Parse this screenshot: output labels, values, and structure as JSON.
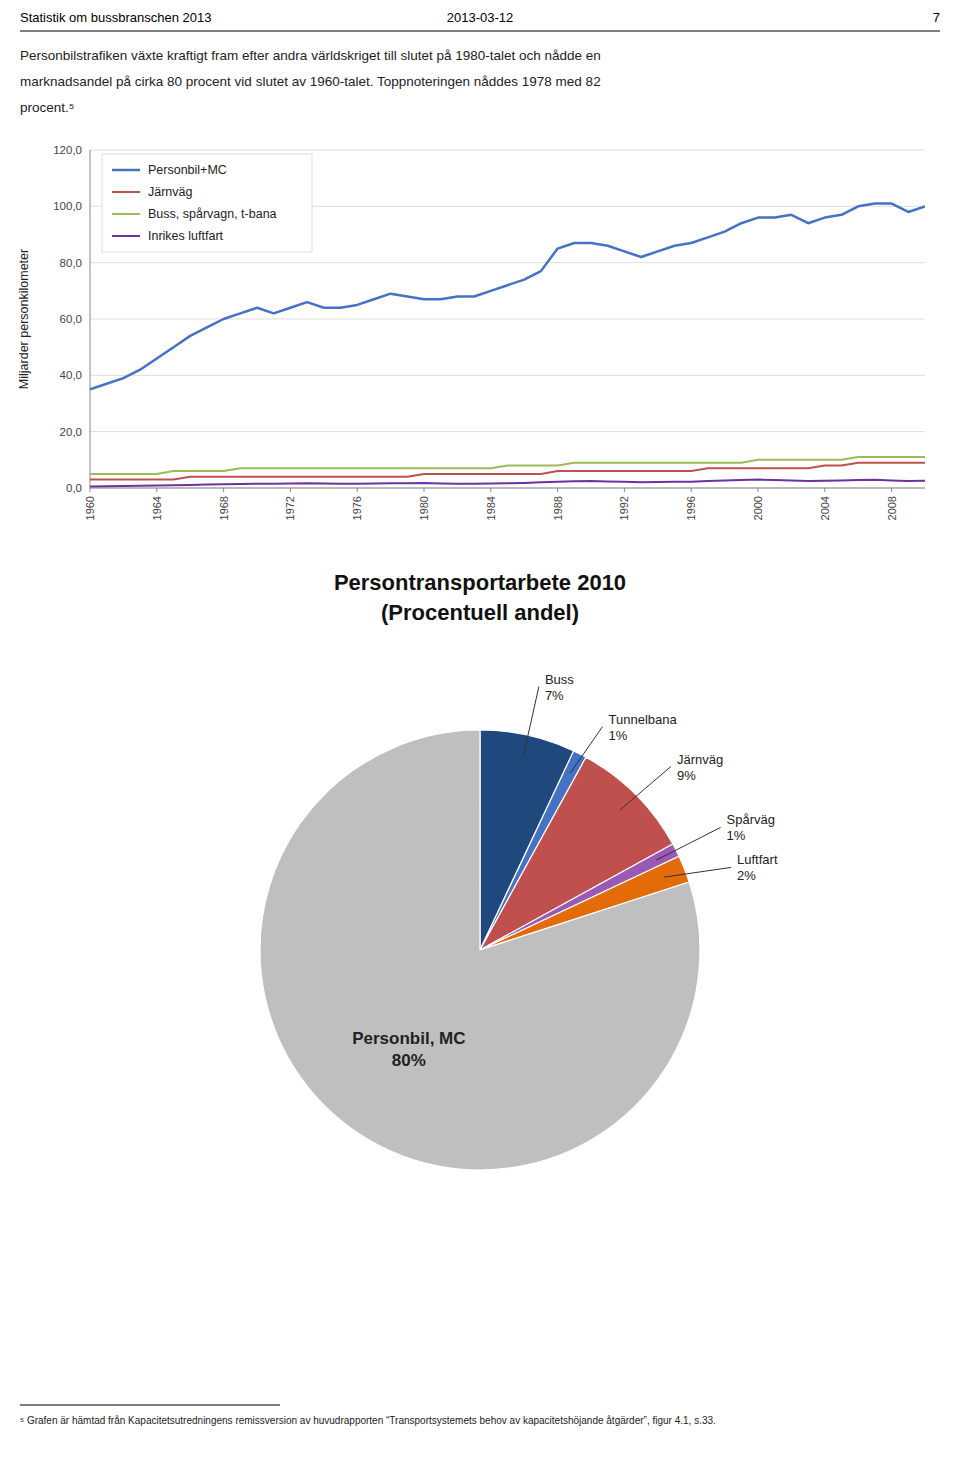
{
  "page_header_left": "Statistik om bussbranschen 2013",
  "page_header_center": "2013-03-12",
  "page_header_right": "7",
  "body_text": [
    "Personbilstrafiken växte kraftigt fram efter andra världskriget till slutet på 1980-talet och nådde en",
    "marknadsandel på cirka 80 procent vid slutet av 1960-talet. Toppnoteringen nåddes 1978 med 82",
    "procent.⁵"
  ],
  "footnote": "⁵ Grafen är hämtad från Kapacitetsutredningens remissversion av huvudrapporten “Transportsystemets behov av kapacitetshöjande åtgärder”, figur 4.1, s.33.",
  "chart_data": [
    {
      "type": "line",
      "x": [
        1960,
        1961,
        1962,
        1963,
        1964,
        1965,
        1966,
        1967,
        1968,
        1969,
        1970,
        1971,
        1972,
        1973,
        1974,
        1975,
        1976,
        1977,
        1978,
        1979,
        1980,
        1981,
        1982,
        1983,
        1984,
        1985,
        1986,
        1987,
        1988,
        1989,
        1990,
        1991,
        1992,
        1993,
        1994,
        1995,
        1996,
        1997,
        1998,
        1999,
        2000,
        2001,
        2002,
        2003,
        2004,
        2005,
        2006,
        2007,
        2008,
        2009,
        2010
      ],
      "series": [
        {
          "name": "Personbil+MC",
          "color": "#4472C4",
          "values": [
            35,
            37,
            39,
            42,
            46,
            50,
            54,
            57,
            60,
            62,
            64,
            62,
            64,
            66,
            64,
            64,
            65,
            67,
            69,
            68,
            67,
            67,
            68,
            68,
            70,
            72,
            74,
            77,
            85,
            87,
            87,
            86,
            84,
            82,
            84,
            86,
            87,
            89,
            91,
            94,
            96,
            96,
            97,
            94,
            96,
            97,
            100,
            101,
            101,
            98,
            100
          ]
        },
        {
          "name": "Järnväg",
          "color": "#C0504D",
          "values": [
            3,
            3,
            3,
            3,
            3,
            3,
            4,
            4,
            4,
            4,
            4,
            4,
            4,
            4,
            4,
            4,
            4,
            4,
            4,
            4,
            5,
            5,
            5,
            5,
            5,
            5,
            5,
            5,
            6,
            6,
            6,
            6,
            6,
            6,
            6,
            6,
            6,
            7,
            7,
            7,
            7,
            7,
            7,
            7,
            8,
            8,
            9,
            9,
            9,
            9,
            9
          ]
        },
        {
          "name": "Buss, spårvagn, t-bana",
          "color": "#9BBB59",
          "values": [
            5,
            5,
            5,
            5,
            5,
            6,
            6,
            6,
            6,
            7,
            7,
            7,
            7,
            7,
            7,
            7,
            7,
            7,
            7,
            7,
            7,
            7,
            7,
            7,
            7,
            8,
            8,
            8,
            8,
            9,
            9,
            9,
            9,
            9,
            9,
            9,
            9,
            9,
            9,
            9,
            10,
            10,
            10,
            10,
            10,
            10,
            11,
            11,
            11,
            11,
            11
          ]
        },
        {
          "name": "Inrikes luftfart",
          "color": "#7030A0",
          "values": [
            0.5,
            0.6,
            0.7,
            0.8,
            0.9,
            1.0,
            1.1,
            1.2,
            1.3,
            1.4,
            1.5,
            1.5,
            1.6,
            1.7,
            1.6,
            1.5,
            1.5,
            1.6,
            1.7,
            1.7,
            1.8,
            1.6,
            1.5,
            1.5,
            1.6,
            1.7,
            1.8,
            2.0,
            2.2,
            2.4,
            2.5,
            2.3,
            2.2,
            2.0,
            2.1,
            2.2,
            2.2,
            2.5,
            2.7,
            2.8,
            3.0,
            2.8,
            2.7,
            2.5,
            2.6,
            2.7,
            2.8,
            2.9,
            2.7,
            2.5,
            2.6
          ]
        }
      ],
      "y_label": "Miljarder personkilometer",
      "xlim": [
        1960,
        2010
      ],
      "xticks": [
        1960,
        1964,
        1968,
        1972,
        1976,
        1980,
        1984,
        1988,
        1992,
        1996,
        2000,
        2004,
        2008
      ],
      "ylim": [
        0,
        120
      ],
      "yticks": [
        {
          "value": 0,
          "label": "0,0"
        },
        {
          "value": 20,
          "label": "20,0"
        },
        {
          "value": 40,
          "label": "40,0"
        },
        {
          "value": 60,
          "label": "60,0"
        },
        {
          "value": 80,
          "label": "80,0"
        },
        {
          "value": 100,
          "label": "100,0"
        },
        {
          "value": 120,
          "label": "120,0"
        }
      ],
      "grid": true,
      "legend": "upper left"
    },
    {
      "type": "pie",
      "title": "Persontransportarbete 2010",
      "subtitle": "(Procentuell andel)",
      "categories": [
        "Buss",
        "Tunnelbana",
        "Järnväg",
        "Spårväg",
        "Luftfart",
        "Personbil, MC"
      ],
      "values": [
        7,
        1,
        9,
        1,
        2,
        80
      ],
      "value_labels": [
        "7%",
        "1%",
        "9%",
        "1%",
        "2%",
        "80%"
      ],
      "colors": [
        "#1F497D",
        "#4472C4",
        "#C0504D",
        "#9B59B6",
        "#E36C09",
        "#BFBFBF"
      ],
      "data_labels": true
    }
  ]
}
